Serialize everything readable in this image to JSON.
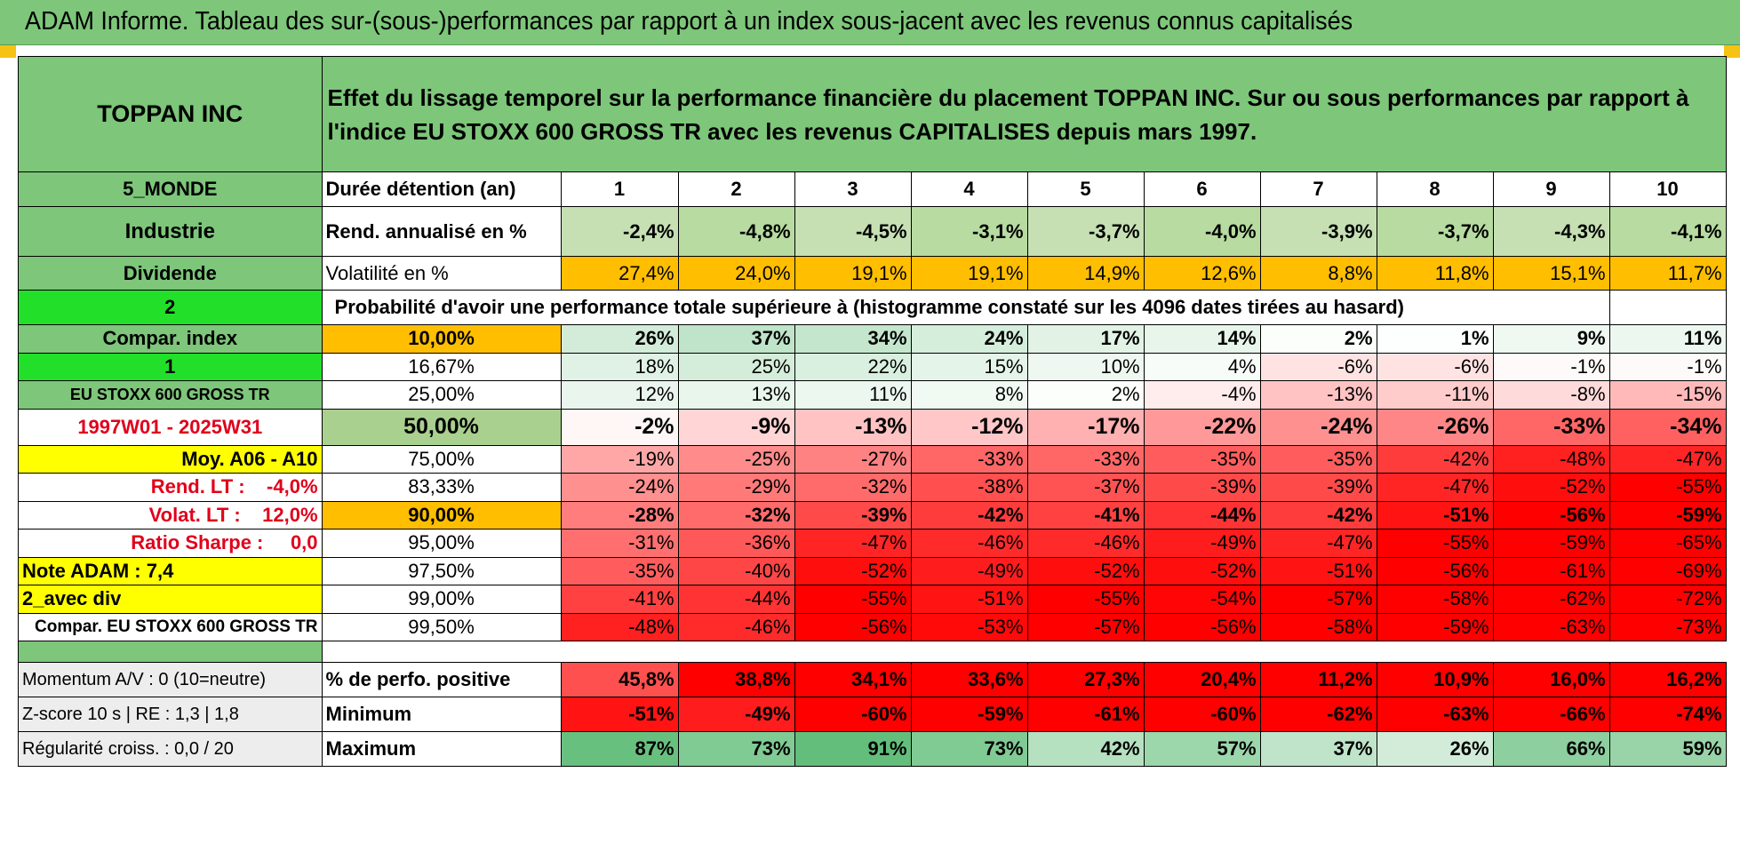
{
  "title": "ADAM Informe. Tableau des sur-(sous-)performances par rapport à un index sous-jacent avec les revenus connus capitalisés",
  "company": "TOPPAN INC",
  "description": "Effet du lissage temporel sur la performance financière du placement TOPPAN INC. Sur ou sous performances par rapport à l'indice EU STOXX 600 GROSS TR avec les revenus CAPITALISES depuis mars 1997.",
  "side": {
    "zone": "5_MONDE",
    "sector": "Industrie",
    "dividend_label": "Dividende",
    "dividend_value": "2",
    "compar_label": "Compar. index",
    "compar_value": "1",
    "index_name": "EU STOXX 600 GROSS TR",
    "period": "1997W01 - 2025W31",
    "moy": "Moy. A06 - A10",
    "rend_lt": "Rend. LT :    -4,0%",
    "volat_lt": "Volat. LT :    12,0%",
    "sharpe": "Ratio Sharpe :     0,0",
    "note": "Note ADAM : 7,4",
    "div_mode": "2_avec div",
    "compar_full": "Compar. EU STOXX 600 GROSS TR",
    "momentum": "Momentum A/V : 0 (10=neutre)",
    "zscore": "Z-score 10 s | RE : 1,3 | 1,8",
    "regularite": "Régularité croiss. : 0,0 / 20"
  },
  "header_row": {
    "label": "Durée détention (an)",
    "years": [
      "1",
      "2",
      "3",
      "4",
      "5",
      "6",
      "7",
      "8",
      "9",
      "10"
    ]
  },
  "rend_row": {
    "label": "Rend. annualisé en %",
    "values": [
      "-2,4%",
      "-4,8%",
      "-4,5%",
      "-3,1%",
      "-3,7%",
      "-4,0%",
      "-3,9%",
      "-3,7%",
      "-4,3%",
      "-4,1%"
    ]
  },
  "vol_row": {
    "label": "Volatilité en %",
    "values": [
      "27,4%",
      "24,0%",
      "19,1%",
      "19,1%",
      "14,9%",
      "12,6%",
      "8,8%",
      "11,8%",
      "15,1%",
      "11,7%"
    ]
  },
  "prob_title": "Probabilité d'avoir une performance totale supérieure à (histogramme constaté sur les 4096 dates tirées au hasard)",
  "prob_rows": [
    {
      "p": "10,00%",
      "vals": [
        "26%",
        "37%",
        "34%",
        "24%",
        "17%",
        "14%",
        "2%",
        "1%",
        "9%",
        "11%"
      ]
    },
    {
      "p": "16,67%",
      "vals": [
        "18%",
        "25%",
        "22%",
        "15%",
        "10%",
        "4%",
        "-6%",
        "-6%",
        "-1%",
        "-1%"
      ]
    },
    {
      "p": "25,00%",
      "vals": [
        "12%",
        "13%",
        "11%",
        "8%",
        "2%",
        "-4%",
        "-13%",
        "-11%",
        "-8%",
        "-15%"
      ]
    },
    {
      "p": "50,00%",
      "vals": [
        "-2%",
        "-9%",
        "-13%",
        "-12%",
        "-17%",
        "-22%",
        "-24%",
        "-26%",
        "-33%",
        "-34%"
      ]
    },
    {
      "p": "75,00%",
      "vals": [
        "-19%",
        "-25%",
        "-27%",
        "-33%",
        "-33%",
        "-35%",
        "-35%",
        "-42%",
        "-48%",
        "-47%"
      ]
    },
    {
      "p": "83,33%",
      "vals": [
        "-24%",
        "-29%",
        "-32%",
        "-38%",
        "-37%",
        "-39%",
        "-39%",
        "-47%",
        "-52%",
        "-55%"
      ]
    },
    {
      "p": "90,00%",
      "vals": [
        "-28%",
        "-32%",
        "-39%",
        "-42%",
        "-41%",
        "-44%",
        "-42%",
        "-51%",
        "-56%",
        "-59%"
      ]
    },
    {
      "p": "95,00%",
      "vals": [
        "-31%",
        "-36%",
        "-47%",
        "-46%",
        "-46%",
        "-49%",
        "-47%",
        "-55%",
        "-59%",
        "-65%"
      ]
    },
    {
      "p": "97,50%",
      "vals": [
        "-35%",
        "-40%",
        "-52%",
        "-49%",
        "-52%",
        "-52%",
        "-51%",
        "-56%",
        "-61%",
        "-69%"
      ]
    },
    {
      "p": "99,00%",
      "vals": [
        "-41%",
        "-44%",
        "-55%",
        "-51%",
        "-55%",
        "-54%",
        "-57%",
        "-58%",
        "-62%",
        "-72%"
      ]
    },
    {
      "p": "99,50%",
      "vals": [
        "-48%",
        "-46%",
        "-56%",
        "-53%",
        "-57%",
        "-56%",
        "-58%",
        "-59%",
        "-63%",
        "-73%"
      ]
    }
  ],
  "stats_rows": [
    {
      "label": "% de perfo. positive",
      "vals": [
        "45,8%",
        "38,8%",
        "34,1%",
        "33,6%",
        "27,3%",
        "20,4%",
        "11,2%",
        "10,9%",
        "16,0%",
        "16,2%"
      ]
    },
    {
      "label": "Minimum",
      "vals": [
        "-51%",
        "-49%",
        "-60%",
        "-59%",
        "-61%",
        "-60%",
        "-62%",
        "-63%",
        "-66%",
        "-74%"
      ]
    },
    {
      "label": "Maximum",
      "vals": [
        "87%",
        "73%",
        "91%",
        "73%",
        "42%",
        "57%",
        "37%",
        "26%",
        "66%",
        "59%"
      ]
    }
  ],
  "colors": {
    "title_green": "#7dc67a",
    "highlight_yellow": "#ffff00",
    "highlight_orange": "#ffbe00",
    "bright_green": "#22e02a",
    "negative_red": "#ff0000",
    "positive_green": "#63be7b"
  }
}
